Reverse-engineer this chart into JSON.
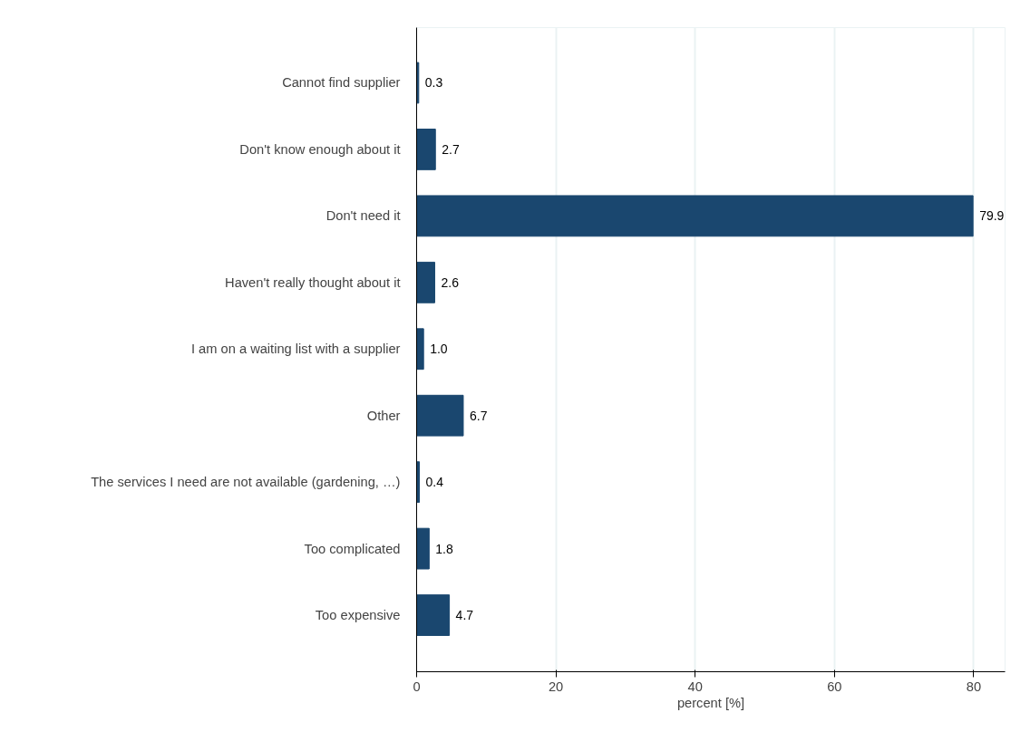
{
  "chart_data": {
    "type": "bar",
    "orientation": "horizontal",
    "xlabel": "percent [%]",
    "categories": [
      "Cannot find supplier",
      "Don't know enough about it",
      "Don't need it",
      "Haven't really thought about it",
      "I am on a waiting list with a supplier",
      "Other",
      "The services I need are not available (gardening, …)",
      "Too complicated",
      "Too expensive"
    ],
    "values": [
      0.3,
      2.7,
      79.9,
      2.6,
      1.0,
      6.7,
      0.4,
      1.8,
      4.7
    ],
    "color": "#1a476f",
    "value_labels": [
      "0.3",
      "2.7",
      "79.9",
      "2.6",
      "1.0",
      "6.7",
      "0.4",
      "1.8",
      "4.7"
    ],
    "xlim": [
      0,
      84.5
    ],
    "xticks": [
      0,
      20,
      40,
      60,
      80
    ],
    "grid": "x"
  }
}
